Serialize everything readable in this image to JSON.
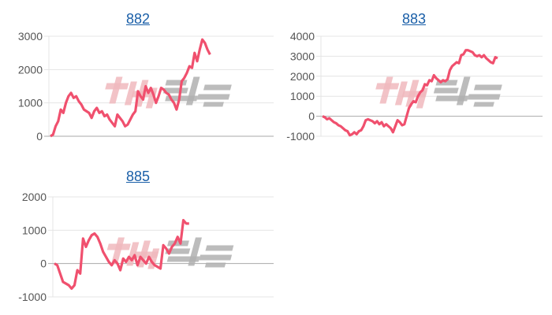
{
  "watermark_logo": "みんレポ",
  "line_color": "#f0506e",
  "chart_data": [
    {
      "type": "line",
      "title": "882",
      "y_ticks": [
        0,
        1000,
        2000,
        3000
      ],
      "ylim": [
        0,
        3000
      ],
      "x_fraction_covered": 0.71,
      "grid": true,
      "values": [
        0,
        50,
        300,
        450,
        800,
        700,
        1000,
        1200,
        1300,
        1150,
        1200,
        1050,
        950,
        800,
        750,
        700,
        550,
        750,
        850,
        700,
        750,
        600,
        650,
        500,
        400,
        300,
        650,
        550,
        450,
        300,
        350,
        500,
        650,
        750,
        1350,
        1200,
        1100,
        1500,
        1300,
        1450,
        1250,
        1000,
        1200,
        1450,
        1400,
        1300,
        1250,
        1100,
        1000,
        800,
        1100,
        1650,
        1750,
        1900,
        2100,
        2050,
        2500,
        2250,
        2600,
        2900,
        2800,
        2600,
        2450
      ]
    },
    {
      "type": "line",
      "title": "883",
      "y_ticks": [
        -1000,
        0,
        1000,
        2000,
        3000,
        4000
      ],
      "ylim": [
        -1000,
        4000
      ],
      "x_fraction_covered": 0.79,
      "grid": true,
      "values": [
        0,
        -50,
        -150,
        -100,
        -200,
        -300,
        -350,
        -450,
        -500,
        -600,
        -700,
        -750,
        -950,
        -900,
        -800,
        -900,
        -750,
        -700,
        -500,
        -200,
        -150,
        -200,
        -250,
        -350,
        -250,
        -400,
        -300,
        -500,
        -400,
        -500,
        -600,
        -800,
        -500,
        -200,
        -300,
        -450,
        -400,
        0,
        400,
        600,
        750,
        700,
        1000,
        1200,
        1300,
        1600,
        1550,
        1800,
        1750,
        2050,
        1900,
        1800,
        1700,
        1800,
        1750,
        1850,
        2300,
        2500,
        2600,
        2700,
        2650,
        3050,
        3100,
        3300,
        3300,
        3250,
        3200,
        3050,
        3000,
        3050,
        2950,
        3050,
        2900,
        2800,
        2700,
        2650,
        2950,
        2900
      ]
    },
    {
      "type": "line",
      "title": "885",
      "y_ticks": [
        -1000,
        0,
        1000,
        2000
      ],
      "ylim": [
        -1000,
        2000
      ],
      "x_fraction_covered": 0.61,
      "grid": true,
      "values": [
        0,
        -50,
        -300,
        -550,
        -600,
        -650,
        -750,
        -650,
        -200,
        -300,
        750,
        500,
        700,
        850,
        900,
        800,
        600,
        350,
        200,
        50,
        -50,
        100,
        0,
        -200,
        150,
        50,
        200,
        100,
        250,
        -50,
        200,
        100,
        0,
        200,
        50,
        -50,
        -100,
        -150,
        550,
        450,
        300,
        500,
        600,
        800,
        600,
        1300,
        1200,
        1200
      ]
    }
  ]
}
